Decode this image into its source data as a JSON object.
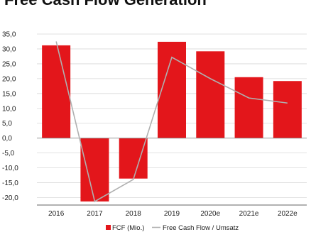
{
  "chart_data": {
    "type": "bar",
    "title": "Free Cash Flow Generation",
    "categories": [
      "2016",
      "2017",
      "2018",
      "2019",
      "2020e",
      "2021e",
      "2022e"
    ],
    "series": [
      {
        "name": "FCF (Mio.)",
        "type": "bar",
        "color": "#e3161b",
        "values": [
          31.2,
          -21.3,
          -13.6,
          32.4,
          29.2,
          20.5,
          19.2
        ]
      },
      {
        "name": "Free Cash Flow / Umsatz",
        "type": "line",
        "color": "#b0b0b0",
        "values": [
          32.5,
          -21.3,
          -13.9,
          27.2,
          20.0,
          13.5,
          11.8
        ]
      }
    ],
    "ylim": [
      -22.5,
      35.0
    ],
    "yticks": [
      "35,0",
      "30,0",
      "25,0",
      "20,0",
      "15,0",
      "10,0",
      "5,0",
      "0,0",
      "-5,0",
      "-10,0",
      "-15,0",
      "-20,0"
    ],
    "ytick_values": [
      35,
      30,
      25,
      20,
      15,
      10,
      5,
      0,
      -5,
      -10,
      -15,
      -20
    ],
    "grid": true,
    "legend_position": "bottom",
    "xlabel": "",
    "ylabel": ""
  }
}
